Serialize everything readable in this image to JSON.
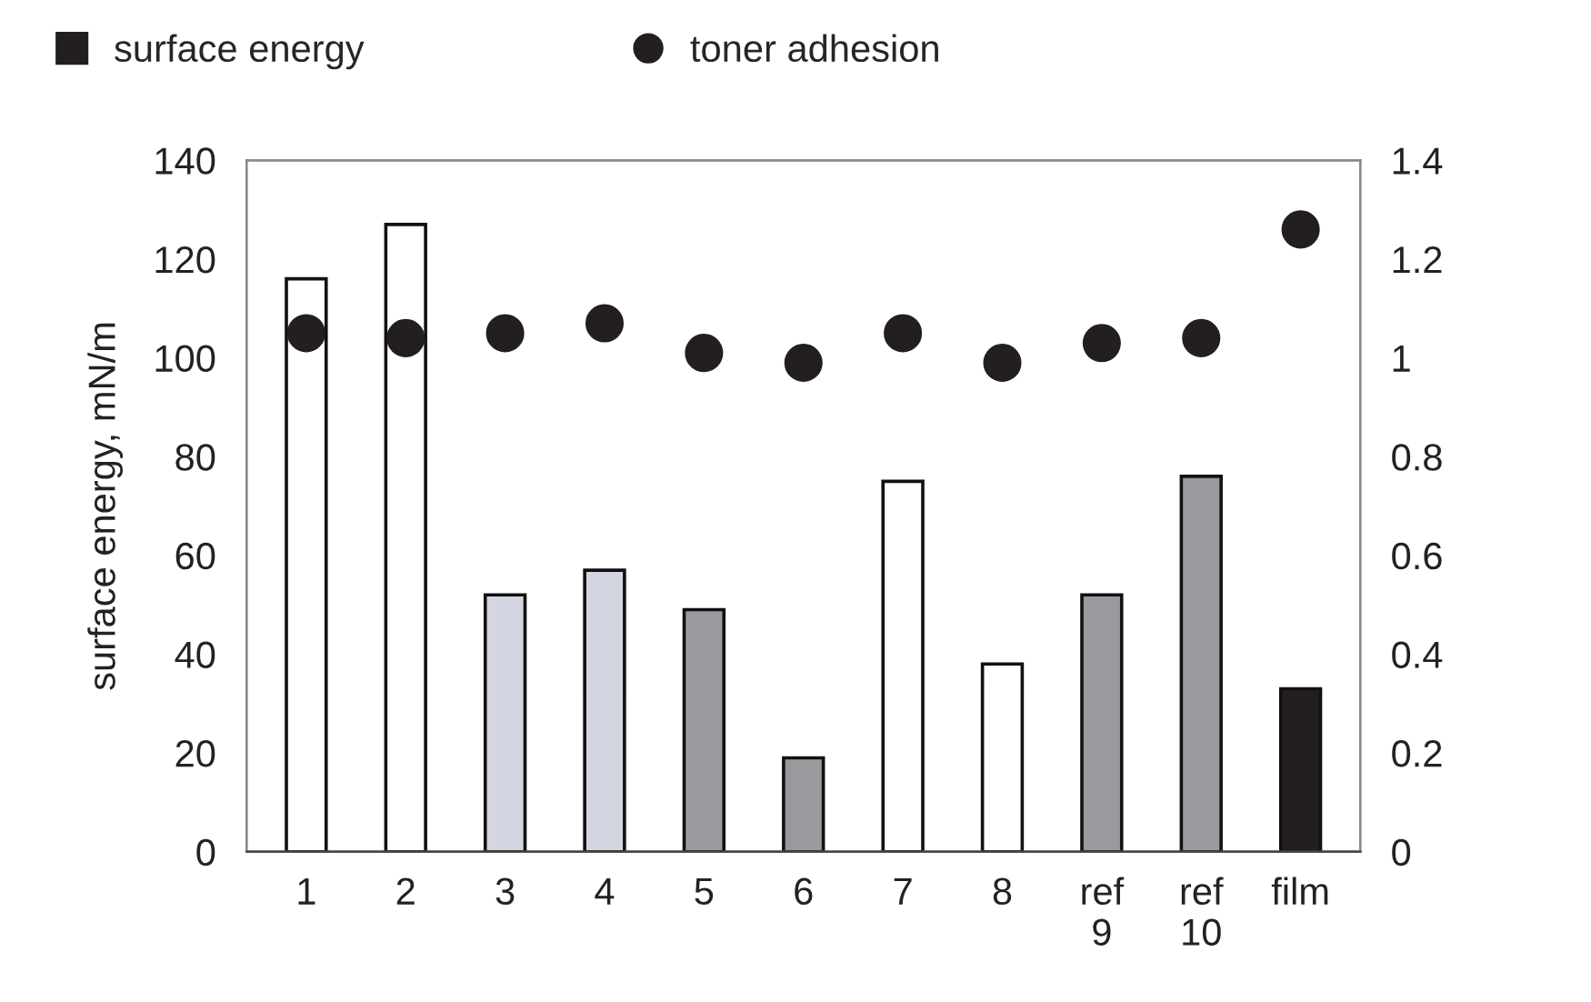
{
  "chart_data": {
    "type": "bar",
    "ylabel": "surface energy, mN/m",
    "categories": [
      "1",
      "2",
      "3",
      "4",
      "5",
      "6",
      "7",
      "8",
      "ref 9",
      "ref 10",
      "film"
    ],
    "series": [
      {
        "name": "surface energy",
        "color": "#ffffff",
        "colors": [
          "#ffffff",
          "#ffffff",
          "#d3d6e0",
          "#d3d6e0",
          "#9a999e",
          "#9a999e",
          "#ffffff",
          "#ffffff",
          "#9a999e",
          "#9a999e",
          "#231f20"
        ],
        "values": [
          116,
          127,
          52,
          57,
          49,
          19,
          75,
          38,
          52,
          76,
          33
        ]
      },
      {
        "name": "toner adhesion",
        "type": "scatter",
        "axis": "y2",
        "color": "#231f20",
        "marker": "circle",
        "values": [
          1.05,
          1.04,
          1.05,
          1.07,
          1.01,
          0.99,
          1.05,
          0.99,
          1.03,
          1.04,
          1.26
        ]
      }
    ],
    "ylim": [
      0,
      140
    ],
    "yticks": [
      0,
      20,
      40,
      60,
      80,
      100,
      120,
      140
    ],
    "y2lim": [
      0,
      1.4
    ],
    "y2ticks": [
      0,
      0.2,
      0.4,
      0.6,
      0.8,
      1,
      1.2,
      1.4
    ],
    "grid": false,
    "legend": "top"
  }
}
